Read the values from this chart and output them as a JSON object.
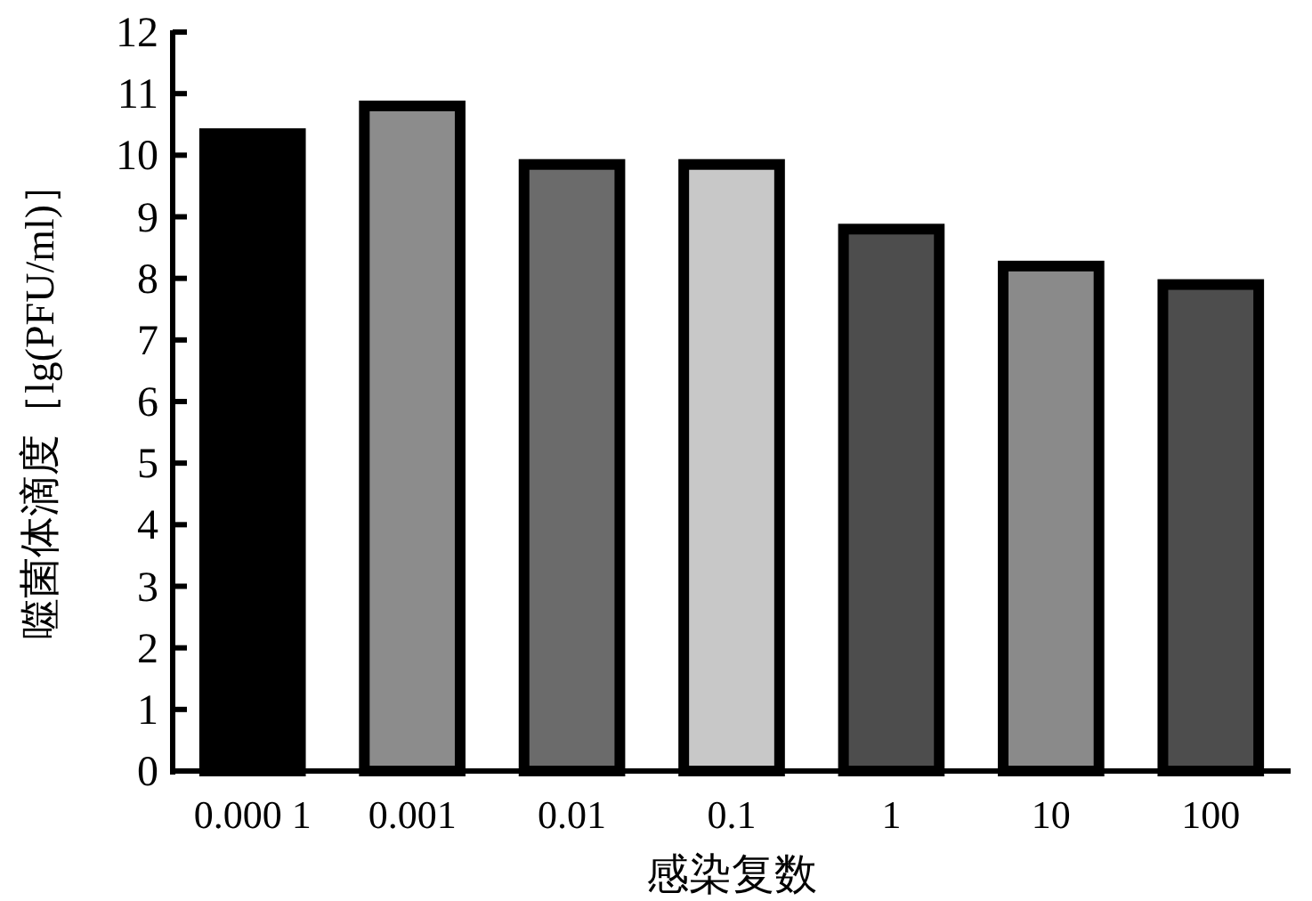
{
  "chart_data": {
    "type": "bar",
    "xlabel": "感染复数",
    "ylabel": "噬菌体滴度［lg(PFU/ml)］",
    "categories": [
      "0.000 1",
      "0.001",
      "0.01",
      "0.1",
      "1",
      "10",
      "100"
    ],
    "values": [
      10.35,
      10.8,
      9.85,
      9.85,
      8.8,
      8.2,
      7.9
    ],
    "errors": [
      0.05,
      0.05,
      0.05,
      0.05,
      0.05,
      0.05,
      0.05
    ],
    "colors": [
      "#000000",
      "#8c8c8c",
      "#6b6b6b",
      "#c8c8c8",
      "#4d4d4d",
      "#8a8a8a",
      "#4d4d4d"
    ],
    "ylim": [
      0,
      12
    ],
    "yticks": [
      0,
      1,
      2,
      3,
      4,
      5,
      6,
      7,
      8,
      9,
      10,
      11,
      12
    ],
    "grid": false
  }
}
